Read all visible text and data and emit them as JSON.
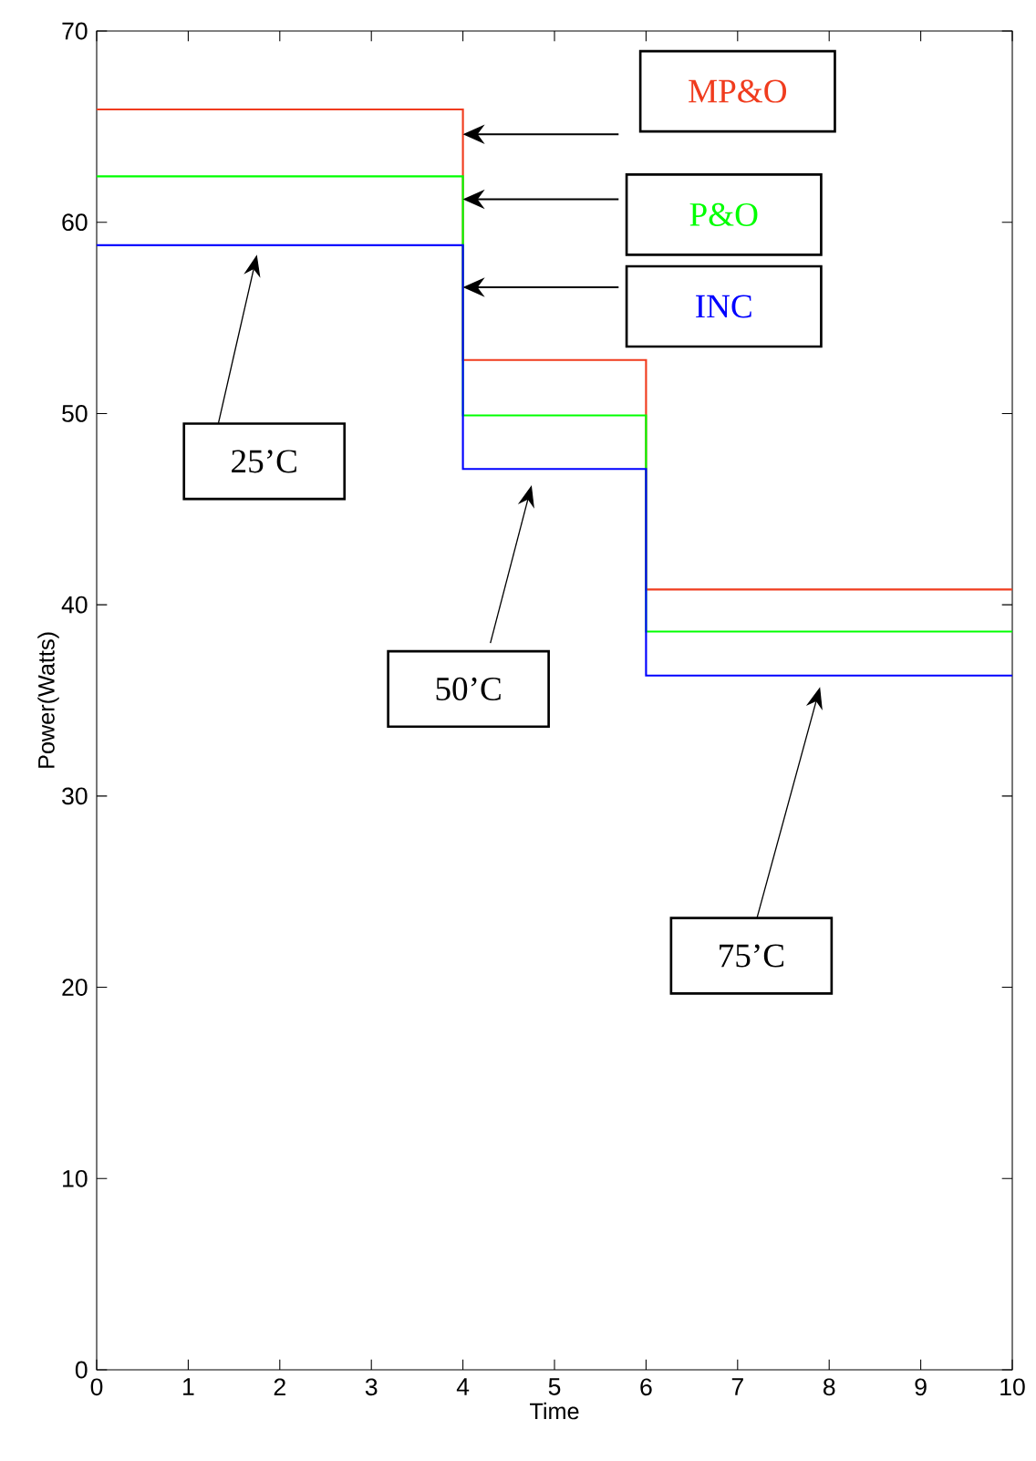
{
  "chart_data": {
    "type": "step",
    "xlabel": "Time",
    "ylabel": "Power(Watts)",
    "x": [
      0,
      4,
      6,
      10
    ],
    "xlim": [
      0,
      10
    ],
    "ylim": [
      0,
      70
    ],
    "xticks": [
      0,
      1,
      2,
      3,
      4,
      5,
      6,
      7,
      8,
      9,
      10
    ],
    "yticks": [
      0,
      10,
      20,
      30,
      40,
      50,
      60,
      70
    ],
    "series": [
      {
        "name": "MP&O",
        "color": "#f03c1e",
        "values": [
          65.9,
          52.8,
          40.8,
          40.8
        ]
      },
      {
        "name": "P&O",
        "color": "#00ff00",
        "values": [
          62.4,
          49.9,
          38.6,
          38.6
        ]
      },
      {
        "name": "INC",
        "color": "#0000ff",
        "values": [
          58.8,
          47.1,
          36.3,
          36.3
        ]
      }
    ],
    "annotations": [
      "25’C",
      "50’C",
      "75’C"
    ]
  }
}
